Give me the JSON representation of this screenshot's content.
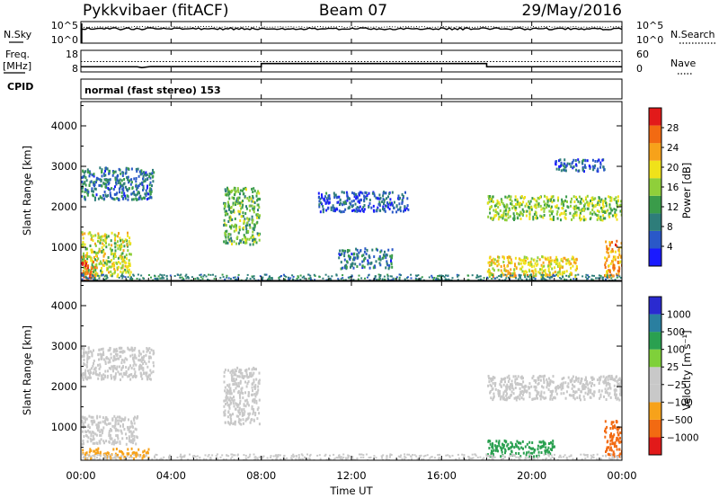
{
  "header": {
    "station": "Pykkvibaer (fitACF)",
    "beam": "Beam 07",
    "date": "29/May/2016"
  },
  "noise_panel": {
    "left_label": "N.Sky",
    "right_label": "N.Search",
    "left_ticks": [
      "10^5",
      "10^0"
    ],
    "right_ticks": [
      "10^5",
      "10^0"
    ]
  },
  "freq_panel": {
    "left_label_top": "Freq.",
    "left_label_bottom": "[MHz]",
    "right_label": "Nave",
    "left_ticks": [
      "18",
      "8"
    ],
    "right_ticks": [
      "60",
      "0"
    ]
  },
  "cpid": {
    "label": "CPID",
    "text": "normal (fast stereo) 153"
  },
  "colors": {
    "power_scale": [
      "#1a1aff",
      "#2a58c8",
      "#2e7d7a",
      "#3a9c4a",
      "#8fcf3a",
      "#f0e21a",
      "#f7a21a",
      "#f26a12",
      "#e21a1a"
    ],
    "velocity_scale": [
      "#2a2ad0",
      "#2a7fa0",
      "#2aa050",
      "#7fd03a",
      "#c8c8c8",
      "#c8c8c8",
      "#f7a21a",
      "#f26a12",
      "#e21a1a"
    ]
  },
  "chart_data": [
    {
      "type": "heatmap",
      "panel": "power",
      "ylabel": "Slant Range [km]",
      "yticks": [
        "1000",
        "2000",
        "3000",
        "4000"
      ],
      "ylim": [
        180,
        4600
      ],
      "colorbar_label": "Power [dB]",
      "colorbar_ticks": [
        "4",
        "8",
        "12",
        "16",
        "20",
        "24",
        "28"
      ],
      "colorbar_range": [
        0,
        32
      ],
      "echo_regions": [
        {
          "t_start_h": 0.0,
          "t_end_h": 2.2,
          "range_km": [
            300,
            1400
          ],
          "value": 18
        },
        {
          "t_start_h": 0.0,
          "t_end_h": 0.6,
          "range_km": [
            200,
            700
          ],
          "value": 28
        },
        {
          "t_start_h": 0.0,
          "t_end_h": 3.2,
          "range_km": [
            2200,
            3000
          ],
          "value": 8
        },
        {
          "t_start_h": 6.3,
          "t_end_h": 7.9,
          "range_km": [
            1100,
            2500
          ],
          "value": 14
        },
        {
          "t_start_h": 10.5,
          "t_end_h": 14.5,
          "range_km": [
            1900,
            2400
          ],
          "value": 6
        },
        {
          "t_start_h": 11.4,
          "t_end_h": 13.8,
          "range_km": [
            500,
            1000
          ],
          "value": 8
        },
        {
          "t_start_h": 18.0,
          "t_end_h": 24.0,
          "range_km": [
            1700,
            2300
          ],
          "value": 16
        },
        {
          "t_start_h": 18.0,
          "t_end_h": 22.0,
          "range_km": [
            300,
            800
          ],
          "value": 20
        },
        {
          "t_start_h": 21.0,
          "t_end_h": 23.2,
          "range_km": [
            2900,
            3200
          ],
          "value": 6
        },
        {
          "t_start_h": 23.2,
          "t_end_h": 24.0,
          "range_km": [
            300,
            1200
          ],
          "value": 24
        }
      ]
    },
    {
      "type": "heatmap",
      "panel": "velocity",
      "ylabel": "Slant Range [km]",
      "yticks": [
        "1000",
        "2000",
        "3000",
        "4000"
      ],
      "ylim": [
        180,
        4600
      ],
      "xlabel": "Time UT",
      "xticks": [
        "00:00",
        "04:00",
        "08:00",
        "12:00",
        "16:00",
        "20:00",
        "00:00"
      ],
      "xlim_hours": [
        0,
        24
      ],
      "colorbar_label": "Velocity [m s⁻¹]",
      "colorbar_ticks": [
        "1000",
        "500",
        "100",
        "25",
        "−25",
        "−100",
        "−500",
        "−1000"
      ],
      "echo_regions": [
        {
          "t_start_h": 0.0,
          "t_end_h": 2.5,
          "range_km": [
            600,
            1300
          ],
          "value": 0
        },
        {
          "t_start_h": 0.0,
          "t_end_h": 3.0,
          "range_km": [
            250,
            500
          ],
          "value": -100
        },
        {
          "t_start_h": 0.0,
          "t_end_h": 3.2,
          "range_km": [
            2200,
            3000
          ],
          "value": 0
        },
        {
          "t_start_h": 6.3,
          "t_end_h": 7.9,
          "range_km": [
            1100,
            2500
          ],
          "value": 0
        },
        {
          "t_start_h": 18.0,
          "t_end_h": 24.0,
          "range_km": [
            1700,
            2300
          ],
          "value": 0
        },
        {
          "t_start_h": 18.0,
          "t_end_h": 21.0,
          "range_km": [
            300,
            700
          ],
          "value": 100
        },
        {
          "t_start_h": 23.2,
          "t_end_h": 24.0,
          "range_km": [
            300,
            1200
          ],
          "value": -500
        }
      ]
    }
  ]
}
